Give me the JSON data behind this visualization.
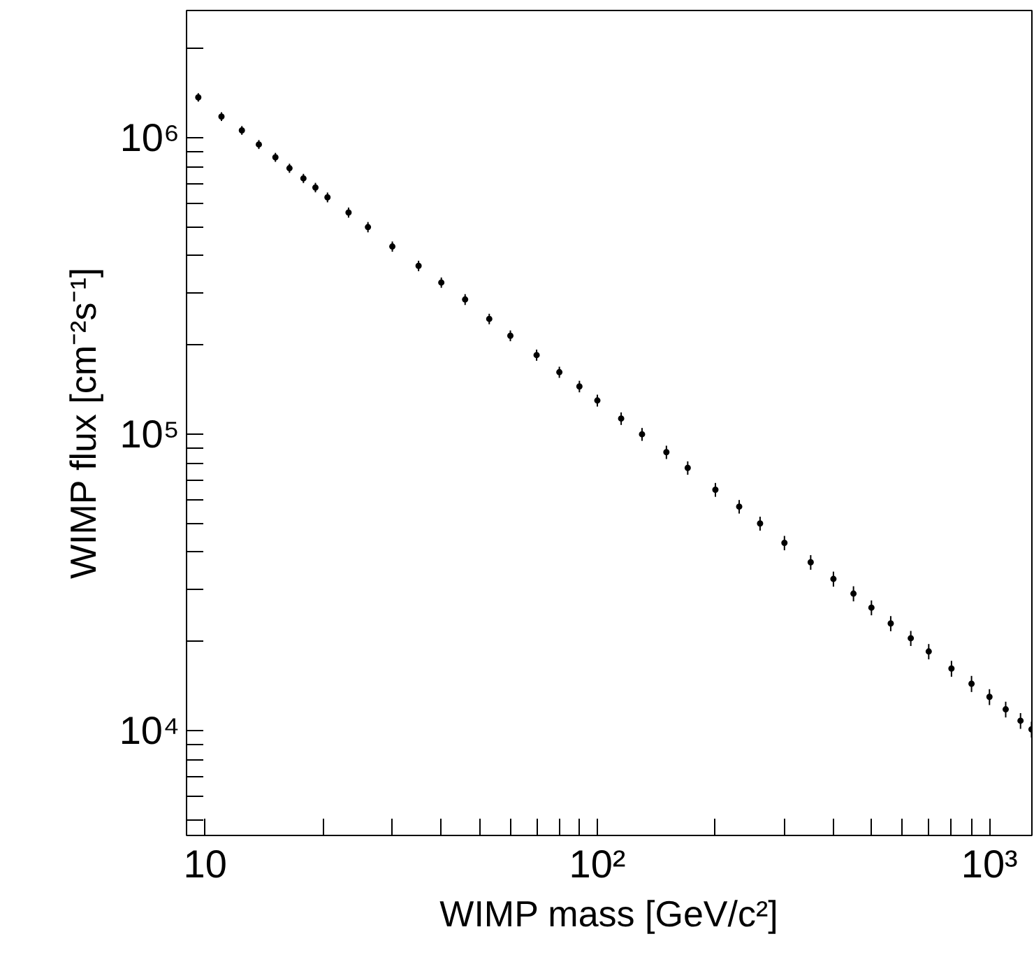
{
  "chart_data": {
    "type": "scatter",
    "marker": "circle",
    "log": "xy",
    "grid": false,
    "xlabel": "WIMP mass [GeV/c²]",
    "ylabel": "WIMP flux [cm⁻²s⁻¹]",
    "xlim": [
      8.96,
      1283
    ],
    "ylim": [
      4430,
      2690000
    ],
    "xticks": [
      {
        "value": 10,
        "label": "10"
      },
      {
        "value": 20,
        "label": null
      },
      {
        "value": 30,
        "label": null
      },
      {
        "value": 40,
        "label": null
      },
      {
        "value": 50,
        "label": null
      },
      {
        "value": 60,
        "label": null
      },
      {
        "value": 70,
        "label": null
      },
      {
        "value": 80,
        "label": null
      },
      {
        "value": 90,
        "label": null
      },
      {
        "value": 100,
        "label": "10²"
      },
      {
        "value": 200,
        "label": null
      },
      {
        "value": 300,
        "label": null
      },
      {
        "value": 400,
        "label": null
      },
      {
        "value": 500,
        "label": null
      },
      {
        "value": 600,
        "label": null
      },
      {
        "value": 700,
        "label": null
      },
      {
        "value": 800,
        "label": null
      },
      {
        "value": 900,
        "label": null
      },
      {
        "value": 1000,
        "label": "10³"
      }
    ],
    "yticks": [
      {
        "value": 5000,
        "label": null
      },
      {
        "value": 6000,
        "label": null
      },
      {
        "value": 7000,
        "label": null
      },
      {
        "value": 8000,
        "label": null
      },
      {
        "value": 9000,
        "label": null
      },
      {
        "value": 10000,
        "label": "10⁴"
      },
      {
        "value": 20000,
        "label": null
      },
      {
        "value": 30000,
        "label": null
      },
      {
        "value": 40000,
        "label": null
      },
      {
        "value": 50000,
        "label": null
      },
      {
        "value": 60000,
        "label": null
      },
      {
        "value": 70000,
        "label": null
      },
      {
        "value": 80000,
        "label": null
      },
      {
        "value": 90000,
        "label": null
      },
      {
        "value": 100000,
        "label": "10⁵"
      },
      {
        "value": 200000,
        "label": null
      },
      {
        "value": 300000,
        "label": null
      },
      {
        "value": 400000,
        "label": null
      },
      {
        "value": 500000,
        "label": null
      },
      {
        "value": 600000,
        "label": null
      },
      {
        "value": 700000,
        "label": null
      },
      {
        "value": 800000,
        "label": null
      },
      {
        "value": 900000,
        "label": null
      },
      {
        "value": 1000000,
        "label": "10⁶"
      },
      {
        "value": 2000000,
        "label": null
      }
    ],
    "series": [
      {
        "color": "#000000",
        "x": [
          9.6,
          11,
          12.4,
          13.7,
          15.1,
          16.4,
          17.8,
          19.1,
          20.5,
          23.2,
          26,
          30,
          35,
          40,
          46,
          53,
          60,
          70,
          80,
          90,
          100,
          115,
          130,
          150,
          170,
          200,
          230,
          260,
          300,
          350,
          400,
          450,
          500,
          560,
          630,
          700,
          800,
          900,
          1000,
          1100,
          1200,
          1280
        ],
        "values": [
          1370000,
          1180000,
          1060000,
          950000,
          860000,
          790000,
          730000,
          680000,
          630000,
          560000,
          500000,
          430000,
          370000,
          325000,
          285000,
          245000,
          215000,
          185000,
          162000,
          145000,
          130000,
          113000,
          100000,
          87000,
          77000,
          65000,
          57000,
          50000,
          43000,
          37000,
          32500,
          29000,
          26000,
          23000,
          20500,
          18500,
          16200,
          14400,
          13000,
          11800,
          10800,
          10100
        ],
        "errors": [
          45000,
          40000,
          36000,
          33000,
          30000,
          28000,
          26000,
          25000,
          24000,
          22000,
          20000,
          17000,
          15000,
          13000,
          12000,
          10000,
          9000,
          8000,
          7000,
          6500,
          6000,
          5500,
          5000,
          4500,
          4000,
          3500,
          3000,
          2700,
          2400,
          2100,
          1900,
          1700,
          1500,
          1350,
          1200,
          1100,
          1000,
          900,
          800,
          720,
          660,
          620
        ]
      }
    ]
  }
}
